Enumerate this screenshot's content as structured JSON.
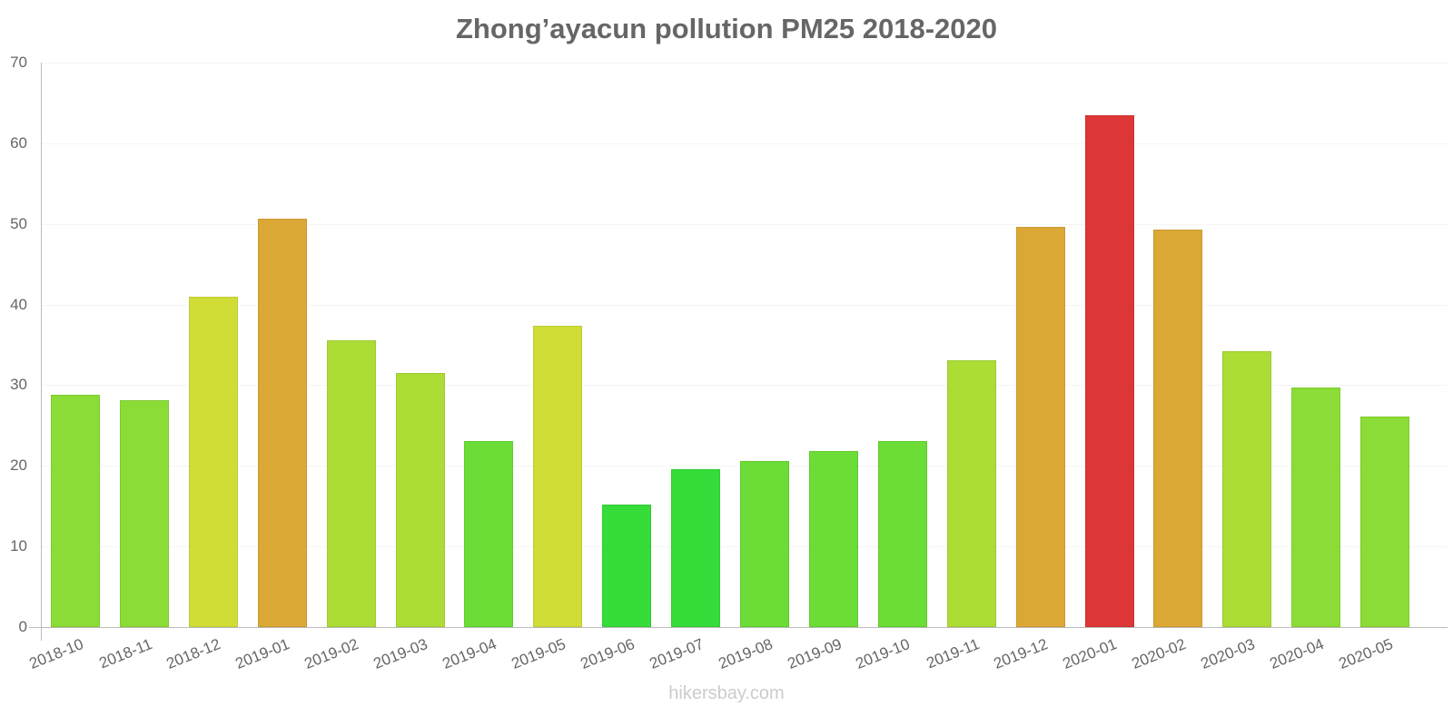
{
  "chart_data": {
    "type": "bar",
    "title": "Zhong’ayacun pollution PM25 2018-2020",
    "xlabel": "",
    "ylabel": "",
    "ylim": [
      0,
      70
    ],
    "yticks": [
      0,
      10,
      20,
      30,
      40,
      50,
      60,
      70
    ],
    "grid": true,
    "legend": null,
    "categories": [
      "2018-10",
      "2018-11",
      "2018-12",
      "2019-01",
      "2019-02",
      "2019-03",
      "2019-04",
      "2019-05",
      "2019-06",
      "2019-07",
      "2019-08",
      "2019-09",
      "2019-10",
      "2019-11",
      "2019-12",
      "2020-01",
      "2020-02",
      "2020-03",
      "2020-04",
      "2020-05"
    ],
    "values": [
      28.8,
      28.1,
      41.0,
      50.6,
      35.6,
      31.5,
      23.1,
      37.4,
      15.2,
      19.6,
      20.6,
      21.8,
      23.1,
      33.1,
      49.6,
      63.5,
      49.3,
      34.2,
      29.7,
      26.1
    ],
    "colors": [
      "#8bdc36",
      "#8bdc36",
      "#cfdd36",
      "#dba836",
      "#acdc36",
      "#acdc36",
      "#6cdc36",
      "#cfdd36",
      "#36dc3a",
      "#36dc3a",
      "#6cdc36",
      "#6cdc36",
      "#6cdc36",
      "#acdc36",
      "#dba836",
      "#dc3636",
      "#dba836",
      "#acdc36",
      "#8bdc36",
      "#8bdc36"
    ]
  },
  "watermark": "hikersbay.com"
}
